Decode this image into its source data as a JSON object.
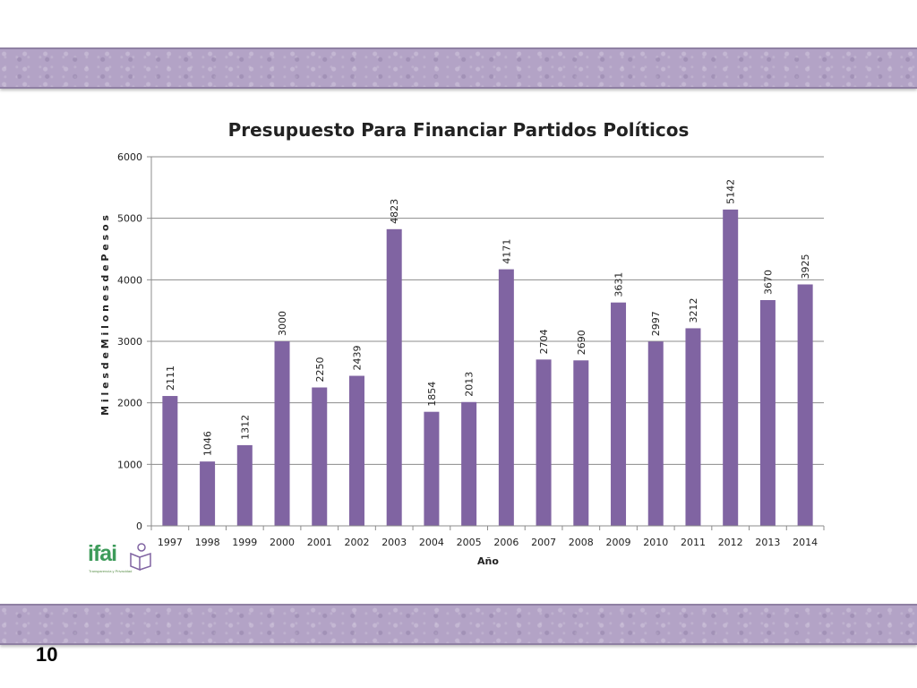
{
  "page": {
    "number": "10",
    "logo": {
      "text": "ifai",
      "tagline": "Transparencia y Privacidad"
    },
    "colors": {
      "band": "#b3a3c6",
      "bar": "#8064a2",
      "logo": "#3d9b5a"
    }
  },
  "chart_data": {
    "type": "bar",
    "title": "Presupuesto Para Financiar Partidos Políticos",
    "xlabel": "Año",
    "ylabel": "M i l e s   d e   M i l o n e s   d e   P e s o s",
    "categories": [
      "1997",
      "1998",
      "1999",
      "2000",
      "2001",
      "2002",
      "2003",
      "2004",
      "2005",
      "2006",
      "2007",
      "2008",
      "2009",
      "2010",
      "2011",
      "2012",
      "2013",
      "2014"
    ],
    "values": [
      2111,
      1046,
      1312,
      3000,
      2250,
      2439,
      4823,
      1854,
      2013,
      4171,
      2704,
      2690,
      3631,
      2997,
      3212,
      5142,
      3670,
      3925
    ],
    "ylim": [
      0,
      6000
    ],
    "yticks": [
      0,
      1000,
      2000,
      3000,
      4000,
      5000,
      6000
    ],
    "grid": true,
    "legend": "none",
    "data_labels": "rotated-above-bar"
  }
}
